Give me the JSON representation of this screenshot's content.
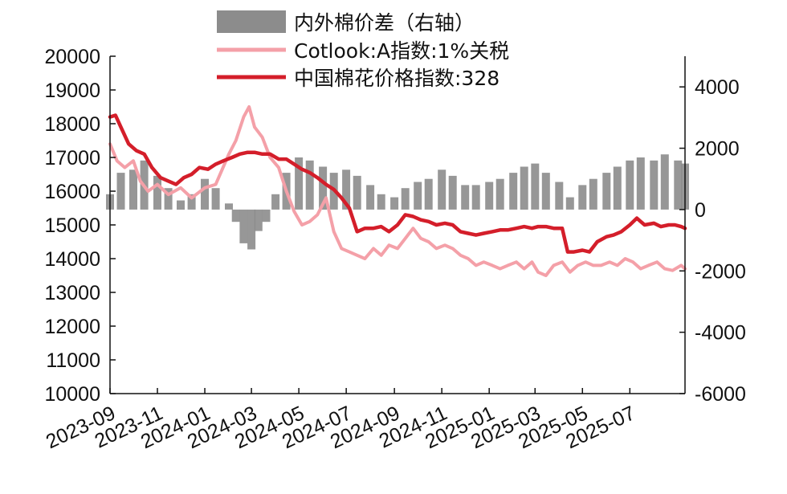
{
  "chart_data": {
    "type": "line",
    "title": "",
    "xlabel": "",
    "ylabel": "",
    "x_ticks": [
      "2023-09",
      "2023-11",
      "2024-01",
      "2024-03",
      "2024-05",
      "2024-07",
      "2024-09",
      "2024-11",
      "2025-01",
      "2025-03",
      "2025-05",
      "2025-07"
    ],
    "x_range": [
      "2023-09-01",
      "2025-09-10"
    ],
    "y_left": {
      "range": [
        10000,
        20000
      ],
      "ticks": [
        "20000",
        "19000",
        "18000",
        "17000",
        "16000",
        "15000",
        "14000",
        "13000",
        "12000",
        "11000",
        "10000"
      ]
    },
    "y_right": {
      "range": [
        -6000,
        5000
      ],
      "ticks": [
        "4000",
        "2000",
        "0",
        "-2000",
        "-4000",
        "-6000"
      ]
    },
    "grid": false,
    "legend_position": "top",
    "series": [
      {
        "name": "内外棉价差（右轴）",
        "type": "bar",
        "axis": "right",
        "color": "#8c8c8c",
        "points": [
          [
            "2023-09-01",
            500
          ],
          [
            "2023-09-15",
            1200
          ],
          [
            "2023-10-01",
            1300
          ],
          [
            "2023-10-15",
            1600
          ],
          [
            "2023-11-01",
            1100
          ],
          [
            "2023-11-15",
            700
          ],
          [
            "2023-12-01",
            300
          ],
          [
            "2023-12-15",
            500
          ],
          [
            "2024-01-01",
            1000
          ],
          [
            "2024-01-15",
            700
          ],
          [
            "2024-02-01",
            200
          ],
          [
            "2024-02-10",
            -400
          ],
          [
            "2024-02-20",
            -1100
          ],
          [
            "2024-03-01",
            -1300
          ],
          [
            "2024-03-10",
            -700
          ],
          [
            "2024-03-20",
            -400
          ],
          [
            "2024-04-01",
            500
          ],
          [
            "2024-04-15",
            1200
          ],
          [
            "2024-05-01",
            1700
          ],
          [
            "2024-05-15",
            1600
          ],
          [
            "2024-06-01",
            1400
          ],
          [
            "2024-06-15",
            1200
          ],
          [
            "2024-07-01",
            1300
          ],
          [
            "2024-07-15",
            1100
          ],
          [
            "2024-08-01",
            800
          ],
          [
            "2024-08-15",
            500
          ],
          [
            "2024-09-01",
            400
          ],
          [
            "2024-09-15",
            700
          ],
          [
            "2024-10-01",
            900
          ],
          [
            "2024-10-15",
            1000
          ],
          [
            "2024-11-01",
            1300
          ],
          [
            "2024-11-15",
            1100
          ],
          [
            "2024-12-01",
            800
          ],
          [
            "2024-12-15",
            800
          ],
          [
            "2025-01-01",
            900
          ],
          [
            "2025-01-15",
            1000
          ],
          [
            "2025-02-01",
            1200
          ],
          [
            "2025-02-15",
            1400
          ],
          [
            "2025-03-01",
            1500
          ],
          [
            "2025-03-15",
            1200
          ],
          [
            "2025-04-01",
            900
          ],
          [
            "2025-04-15",
            400
          ],
          [
            "2025-05-01",
            800
          ],
          [
            "2025-05-15",
            1000
          ],
          [
            "2025-06-01",
            1200
          ],
          [
            "2025-06-15",
            1400
          ],
          [
            "2025-07-01",
            1600
          ],
          [
            "2025-07-15",
            1700
          ],
          [
            "2025-08-01",
            1600
          ],
          [
            "2025-08-15",
            1800
          ],
          [
            "2025-09-01",
            1600
          ],
          [
            "2025-09-10",
            1500
          ]
        ]
      },
      {
        "name": "Cotlook:A指数:1%关税",
        "type": "line",
        "axis": "left",
        "color": "#f4a0a8",
        "points": [
          [
            "2023-09-01",
            17400
          ],
          [
            "2023-09-10",
            16900
          ],
          [
            "2023-09-20",
            16700
          ],
          [
            "2023-10-01",
            16900
          ],
          [
            "2023-10-10",
            16300
          ],
          [
            "2023-10-20",
            16000
          ],
          [
            "2023-11-01",
            16200
          ],
          [
            "2023-11-15",
            15900
          ],
          [
            "2023-12-01",
            16100
          ],
          [
            "2023-12-15",
            15800
          ],
          [
            "2024-01-01",
            16100
          ],
          [
            "2024-01-15",
            16200
          ],
          [
            "2024-02-01",
            17100
          ],
          [
            "2024-02-10",
            17500
          ],
          [
            "2024-02-20",
            18200
          ],
          [
            "2024-02-27",
            18500
          ],
          [
            "2024-03-05",
            17900
          ],
          [
            "2024-03-15",
            17600
          ],
          [
            "2024-03-25",
            17000
          ],
          [
            "2024-04-05",
            16700
          ],
          [
            "2024-04-15",
            16000
          ],
          [
            "2024-04-25",
            15400
          ],
          [
            "2024-05-05",
            15000
          ],
          [
            "2024-05-15",
            15100
          ],
          [
            "2024-05-25",
            15300
          ],
          [
            "2024-06-05",
            15800
          ],
          [
            "2024-06-15",
            14800
          ],
          [
            "2024-06-25",
            14300
          ],
          [
            "2024-07-05",
            14200
          ],
          [
            "2024-07-15",
            14100
          ],
          [
            "2024-07-25",
            14000
          ],
          [
            "2024-08-05",
            14300
          ],
          [
            "2024-08-15",
            14100
          ],
          [
            "2024-08-25",
            14400
          ],
          [
            "2024-09-05",
            14300
          ],
          [
            "2024-09-15",
            14600
          ],
          [
            "2024-09-25",
            14900
          ],
          [
            "2024-10-05",
            14600
          ],
          [
            "2024-10-15",
            14500
          ],
          [
            "2024-10-25",
            14300
          ],
          [
            "2024-11-05",
            14400
          ],
          [
            "2024-11-15",
            14300
          ],
          [
            "2024-11-25",
            14100
          ],
          [
            "2024-12-05",
            14000
          ],
          [
            "2024-12-15",
            13800
          ],
          [
            "2024-12-25",
            13900
          ],
          [
            "2025-01-05",
            13800
          ],
          [
            "2025-01-15",
            13700
          ],
          [
            "2025-01-25",
            13800
          ],
          [
            "2025-02-05",
            13900
          ],
          [
            "2025-02-15",
            13700
          ],
          [
            "2025-02-25",
            13900
          ],
          [
            "2025-03-05",
            13600
          ],
          [
            "2025-03-15",
            13500
          ],
          [
            "2025-03-25",
            13800
          ],
          [
            "2025-04-05",
            13900
          ],
          [
            "2025-04-15",
            13600
          ],
          [
            "2025-04-25",
            13800
          ],
          [
            "2025-05-05",
            13900
          ],
          [
            "2025-05-15",
            13800
          ],
          [
            "2025-05-25",
            13800
          ],
          [
            "2025-06-05",
            13900
          ],
          [
            "2025-06-15",
            13800
          ],
          [
            "2025-06-25",
            14000
          ],
          [
            "2025-07-05",
            13900
          ],
          [
            "2025-07-15",
            13700
          ],
          [
            "2025-07-25",
            13800
          ],
          [
            "2025-08-05",
            13900
          ],
          [
            "2025-08-15",
            13700
          ],
          [
            "2025-08-25",
            13650
          ],
          [
            "2025-09-05",
            13800
          ],
          [
            "2025-09-10",
            13700
          ]
        ]
      },
      {
        "name": "中国棉花价格指数:328",
        "type": "line",
        "axis": "left",
        "color": "#d41e2a",
        "points": [
          [
            "2023-09-01",
            18200
          ],
          [
            "2023-09-08",
            18250
          ],
          [
            "2023-09-15",
            17900
          ],
          [
            "2023-09-25",
            17400
          ],
          [
            "2023-10-05",
            17200
          ],
          [
            "2023-10-15",
            17100
          ],
          [
            "2023-10-25",
            16700
          ],
          [
            "2023-11-05",
            16400
          ],
          [
            "2023-11-15",
            16300
          ],
          [
            "2023-11-25",
            16200
          ],
          [
            "2023-12-05",
            16400
          ],
          [
            "2023-12-15",
            16500
          ],
          [
            "2023-12-25",
            16700
          ],
          [
            "2024-01-05",
            16650
          ],
          [
            "2024-01-15",
            16800
          ],
          [
            "2024-01-25",
            16900
          ],
          [
            "2024-02-05",
            17000
          ],
          [
            "2024-02-15",
            17100
          ],
          [
            "2024-02-25",
            17150
          ],
          [
            "2024-03-05",
            17150
          ],
          [
            "2024-03-15",
            17100
          ],
          [
            "2024-03-25",
            17100
          ],
          [
            "2024-04-05",
            16950
          ],
          [
            "2024-04-15",
            16950
          ],
          [
            "2024-04-25",
            16800
          ],
          [
            "2024-05-05",
            16650
          ],
          [
            "2024-05-15",
            16550
          ],
          [
            "2024-05-25",
            16400
          ],
          [
            "2024-06-05",
            16200
          ],
          [
            "2024-06-15",
            16050
          ],
          [
            "2024-06-25",
            15800
          ],
          [
            "2024-07-05",
            15500
          ],
          [
            "2024-07-15",
            14800
          ],
          [
            "2024-07-25",
            14900
          ],
          [
            "2024-08-05",
            14900
          ],
          [
            "2024-08-15",
            14950
          ],
          [
            "2024-08-25",
            14800
          ],
          [
            "2024-09-05",
            15000
          ],
          [
            "2024-09-15",
            15300
          ],
          [
            "2024-09-25",
            15250
          ],
          [
            "2024-10-05",
            15150
          ],
          [
            "2024-10-15",
            15100
          ],
          [
            "2024-10-25",
            15000
          ],
          [
            "2024-11-05",
            15050
          ],
          [
            "2024-11-15",
            15000
          ],
          [
            "2024-11-25",
            14800
          ],
          [
            "2024-12-05",
            14750
          ],
          [
            "2024-12-15",
            14700
          ],
          [
            "2024-12-25",
            14750
          ],
          [
            "2025-01-05",
            14800
          ],
          [
            "2025-01-15",
            14850
          ],
          [
            "2025-01-25",
            14850
          ],
          [
            "2025-02-05",
            14900
          ],
          [
            "2025-02-15",
            14950
          ],
          [
            "2025-02-25",
            14900
          ],
          [
            "2025-03-05",
            14950
          ],
          [
            "2025-03-15",
            14950
          ],
          [
            "2025-03-25",
            14900
          ],
          [
            "2025-04-05",
            14900
          ],
          [
            "2025-04-12",
            14200
          ],
          [
            "2025-04-20",
            14200
          ],
          [
            "2025-05-01",
            14250
          ],
          [
            "2025-05-10",
            14200
          ],
          [
            "2025-05-20",
            14500
          ],
          [
            "2025-06-01",
            14650
          ],
          [
            "2025-06-10",
            14700
          ],
          [
            "2025-06-20",
            14800
          ],
          [
            "2025-07-01",
            15000
          ],
          [
            "2025-07-10",
            15200
          ],
          [
            "2025-07-15",
            15100
          ],
          [
            "2025-07-20",
            15000
          ],
          [
            "2025-08-01",
            15050
          ],
          [
            "2025-08-10",
            14950
          ],
          [
            "2025-08-20",
            15000
          ],
          [
            "2025-08-28",
            15000
          ],
          [
            "2025-09-05",
            14950
          ],
          [
            "2025-09-10",
            14900
          ]
        ]
      }
    ]
  }
}
